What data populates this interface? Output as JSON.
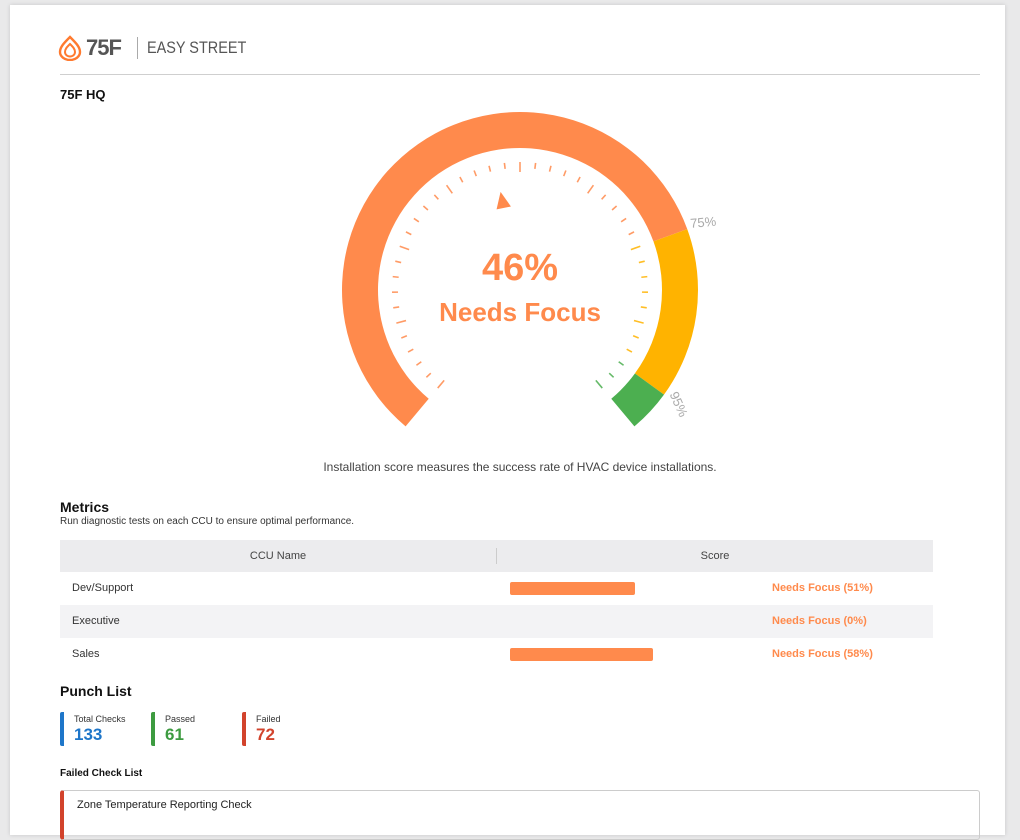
{
  "header": {
    "logo": "75F",
    "app_name": "EASY STREET"
  },
  "site": {
    "name": "75F HQ"
  },
  "gauge": {
    "value": 46,
    "value_label": "46%",
    "status": "Needs Focus",
    "range": [
      0,
      100
    ],
    "thresholds": [
      {
        "value": 75,
        "label": "75%"
      },
      {
        "value": 95,
        "label": "95%"
      }
    ],
    "colors": [
      "#ff8a4c",
      "#ffb300",
      "#4caf50"
    ],
    "caption": "Installation score measures the success rate of HVAC device installations."
  },
  "metrics": {
    "title": "Metrics",
    "subtitle": "Run diagnostic tests on each CCU to ensure optimal performance.",
    "columns": [
      "CCU Name",
      "Score"
    ],
    "range": [
      0,
      100
    ],
    "color": "#ff8a4c",
    "rows": [
      {
        "name": "Dev/Support",
        "score": 51,
        "status": "Needs Focus (51%)"
      },
      {
        "name": "Executive",
        "score": 0,
        "status": "Needs Focus (0%)"
      },
      {
        "name": "Sales",
        "score": 58,
        "status": "Needs Focus (58%)"
      }
    ]
  },
  "punch_list": {
    "title": "Punch List",
    "stats": [
      {
        "label": "Total Checks",
        "value": 133,
        "color": "#1e76c9"
      },
      {
        "label": "Passed",
        "value": 61,
        "color": "#3d9b40"
      },
      {
        "label": "Failed",
        "value": 72,
        "color": "#d2432c"
      }
    ],
    "failed_title": "Failed Check List",
    "failed_checks": [
      "Zone Temperature Reporting Check"
    ]
  }
}
